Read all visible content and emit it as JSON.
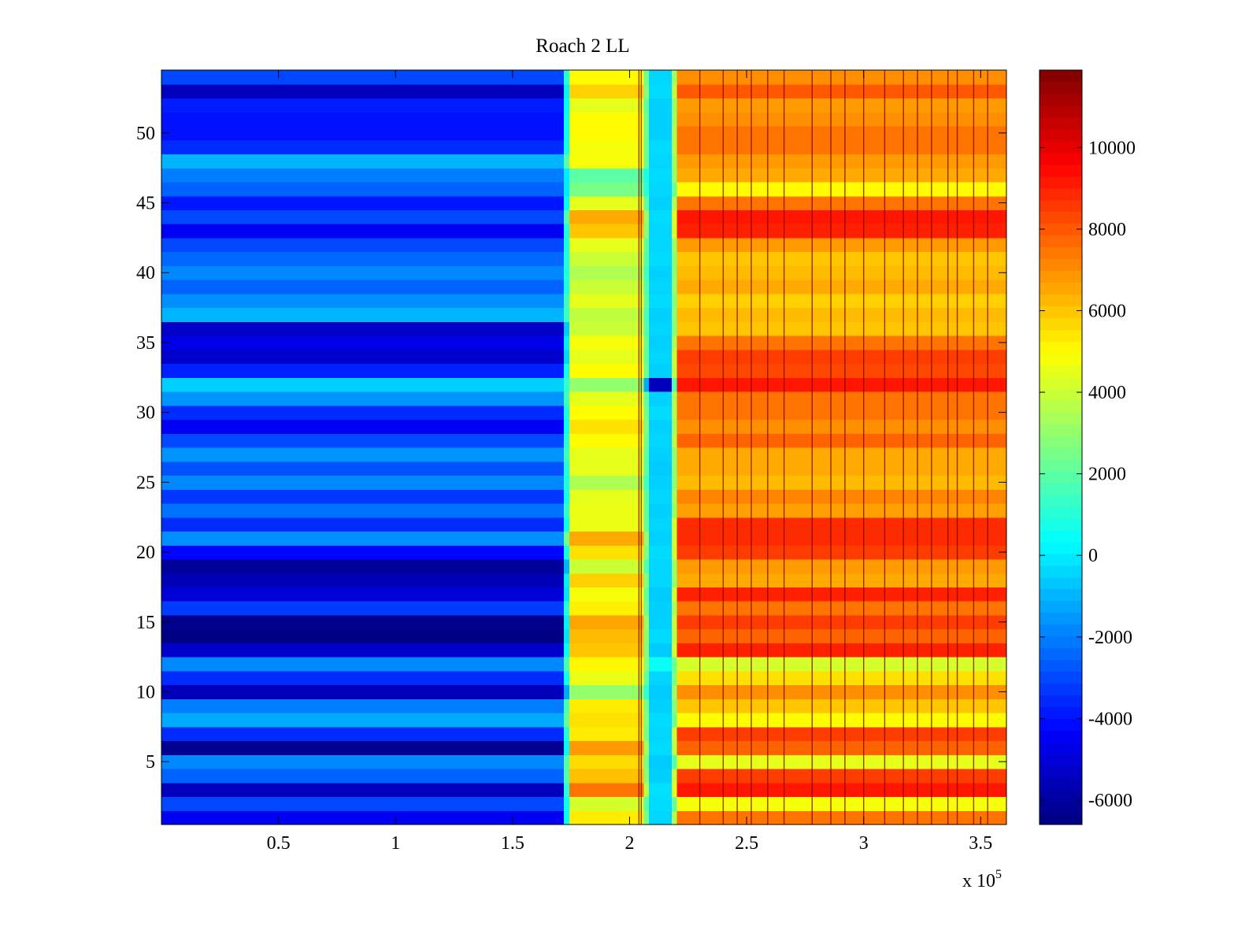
{
  "window": {
    "title": "Roach 2 LL"
  },
  "chart_data": {
    "type": "heatmap",
    "title": "Roach 2 LL",
    "xlabel": "",
    "ylabel": "",
    "x_exponent_label": {
      "prefix": "x 10",
      "superscript": "5"
    },
    "xlim": [
      0.5,
      361000
    ],
    "ylim": [
      0.5,
      54.5
    ],
    "xticks": [
      50000,
      100000,
      150000,
      200000,
      250000,
      300000,
      350000
    ],
    "xtick_labels": [
      "0.5",
      "1",
      "1.5",
      "2",
      "2.5",
      "3",
      "3.5"
    ],
    "yticks": [
      5,
      10,
      15,
      20,
      25,
      30,
      35,
      40,
      45,
      50
    ],
    "ytick_labels": [
      "5",
      "10",
      "15",
      "20",
      "25",
      "30",
      "35",
      "40",
      "45",
      "50"
    ],
    "rows": 54,
    "colormap": "jet",
    "colorbar": {
      "clim": [
        -6600,
        11900
      ],
      "ticks": [
        -6000,
        -4000,
        -2000,
        0,
        2000,
        4000,
        6000,
        8000,
        10000
      ],
      "tick_labels": [
        "-6000",
        "-4000",
        "-2000",
        "0",
        "2000",
        "4000",
        "6000",
        "8000",
        "10000"
      ]
    },
    "segments": [
      {
        "x_start": 0.5,
        "x_end": 172000
      },
      {
        "x_start": 174000,
        "x_end": 206000
      },
      {
        "x_start": 208000,
        "x_end": 218000
      },
      {
        "x_start": 220000,
        "x_end": 361000
      }
    ],
    "row_values_by_segment": [
      [
        -4500,
        -3000,
        -5500,
        -2500,
        -1800,
        -6300,
        -3500,
        -1200,
        -2000,
        -5500,
        -3500,
        -1800,
        -5200,
        -6500,
        -6400,
        -3200,
        -5000,
        -5600,
        -6100,
        -4200,
        -1700,
        -3500,
        -2200,
        -3300,
        -1800,
        -2800,
        -1600,
        -3000,
        -4500,
        -3500,
        -1600,
        -500,
        -3700,
        -5200,
        -4700,
        -5300,
        -1000,
        -1700,
        -2500,
        -1800,
        -2400,
        -3000,
        -4500,
        -3000,
        -3900,
        -2500,
        -2000,
        -1000,
        -3500,
        -4000,
        -4000,
        -3800,
        -5500,
        -3000
      ],
      [
        5300,
        4200,
        7500,
        6100,
        5600,
        6800,
        5300,
        5500,
        5300,
        3000,
        4600,
        5100,
        6000,
        6200,
        6600,
        5200,
        4800,
        5800,
        4000,
        5500,
        6500,
        4600,
        4600,
        4500,
        3500,
        4500,
        4500,
        5000,
        5500,
        5000,
        4500,
        3000,
        5000,
        4500,
        4800,
        4000,
        3800,
        4500,
        4000,
        3500,
        4000,
        4500,
        6000,
        6500,
        4500,
        2500,
        2000,
        4800,
        4800,
        5000,
        5000,
        4500,
        5800,
        5000
      ],
      [
        -400,
        -300,
        -200,
        -500,
        -600,
        -300,
        -400,
        -300,
        -500,
        -600,
        -400,
        500,
        -600,
        -300,
        -500,
        -500,
        -600,
        -400,
        -400,
        -300,
        -500,
        -400,
        -500,
        -400,
        -500,
        -600,
        -500,
        -400,
        -500,
        -300,
        -500,
        -5500,
        -500,
        -400,
        -500,
        -400,
        -500,
        -300,
        -400,
        -500,
        -300,
        -400,
        -400,
        -300,
        -500,
        -400,
        -300,
        -400,
        -300,
        -500,
        -500,
        -500,
        -300,
        -400
      ],
      [
        7500,
        4800,
        9200,
        8500,
        4500,
        7800,
        8500,
        5000,
        6000,
        7000,
        5500,
        4200,
        9000,
        7800,
        8500,
        7500,
        9000,
        6500,
        6800,
        8500,
        8800,
        8800,
        6700,
        7200,
        6200,
        6500,
        6500,
        7800,
        7000,
        7500,
        7500,
        9200,
        8300,
        8500,
        7500,
        6000,
        6200,
        5800,
        6500,
        6200,
        6000,
        6800,
        9000,
        9200,
        7500,
        5000,
        6500,
        6800,
        7500,
        7500,
        7000,
        6800,
        8000,
        7000
      ]
    ],
    "dark_vertical_lines_x": [
      230000,
      240000,
      246000,
      252000,
      259000,
      266000,
      278000,
      286000,
      292000,
      300000,
      309000,
      317000,
      323000,
      329000,
      336000,
      340000,
      347000,
      353000,
      204000,
      205000
    ]
  }
}
